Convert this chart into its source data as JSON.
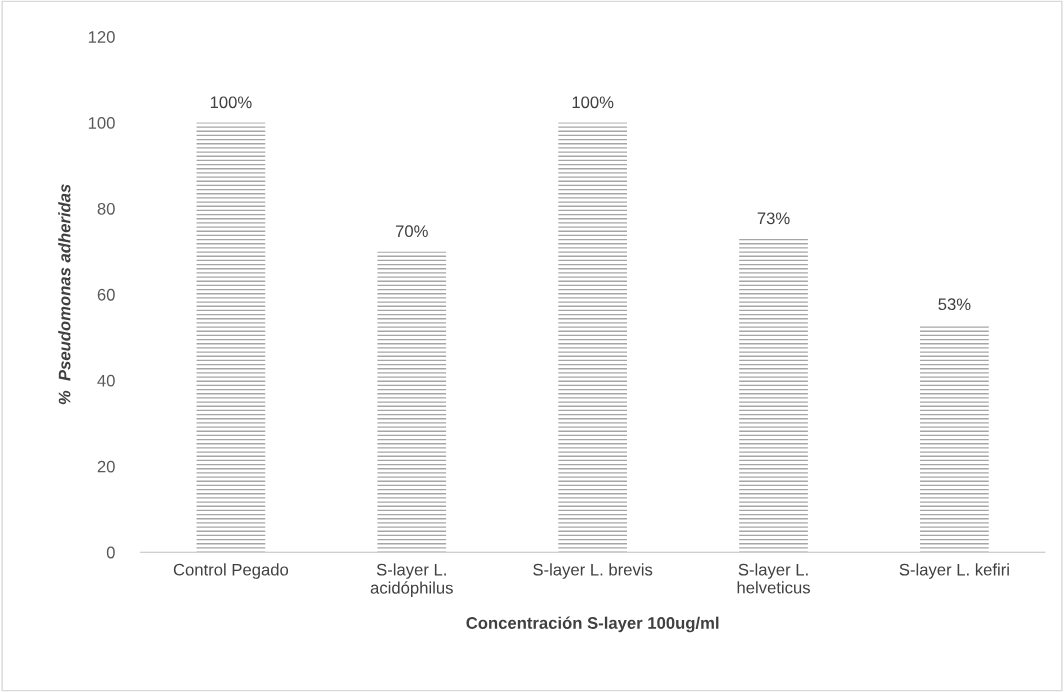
{
  "chart_data": {
    "type": "bar",
    "xlabel": "Concentración S-layer 100ug/ml",
    "ylabel": "%  Pseudomonas adheridas",
    "categories": [
      "Control Pegado",
      "S-layer L.\nacidóphilus",
      "S-layer L. brevis",
      "S-layer L.\nhelveticus",
      "S-layer L. kefiri"
    ],
    "values": [
      100,
      70,
      100,
      73,
      53
    ],
    "value_labels": [
      "100%",
      "70%",
      "100%",
      "73%",
      "53%"
    ],
    "color": "#a6a6a6",
    "ylim": [
      0,
      120
    ],
    "yticks": [
      0,
      20,
      40,
      60,
      80,
      100,
      120
    ],
    "grid": false,
    "legend": false
  }
}
